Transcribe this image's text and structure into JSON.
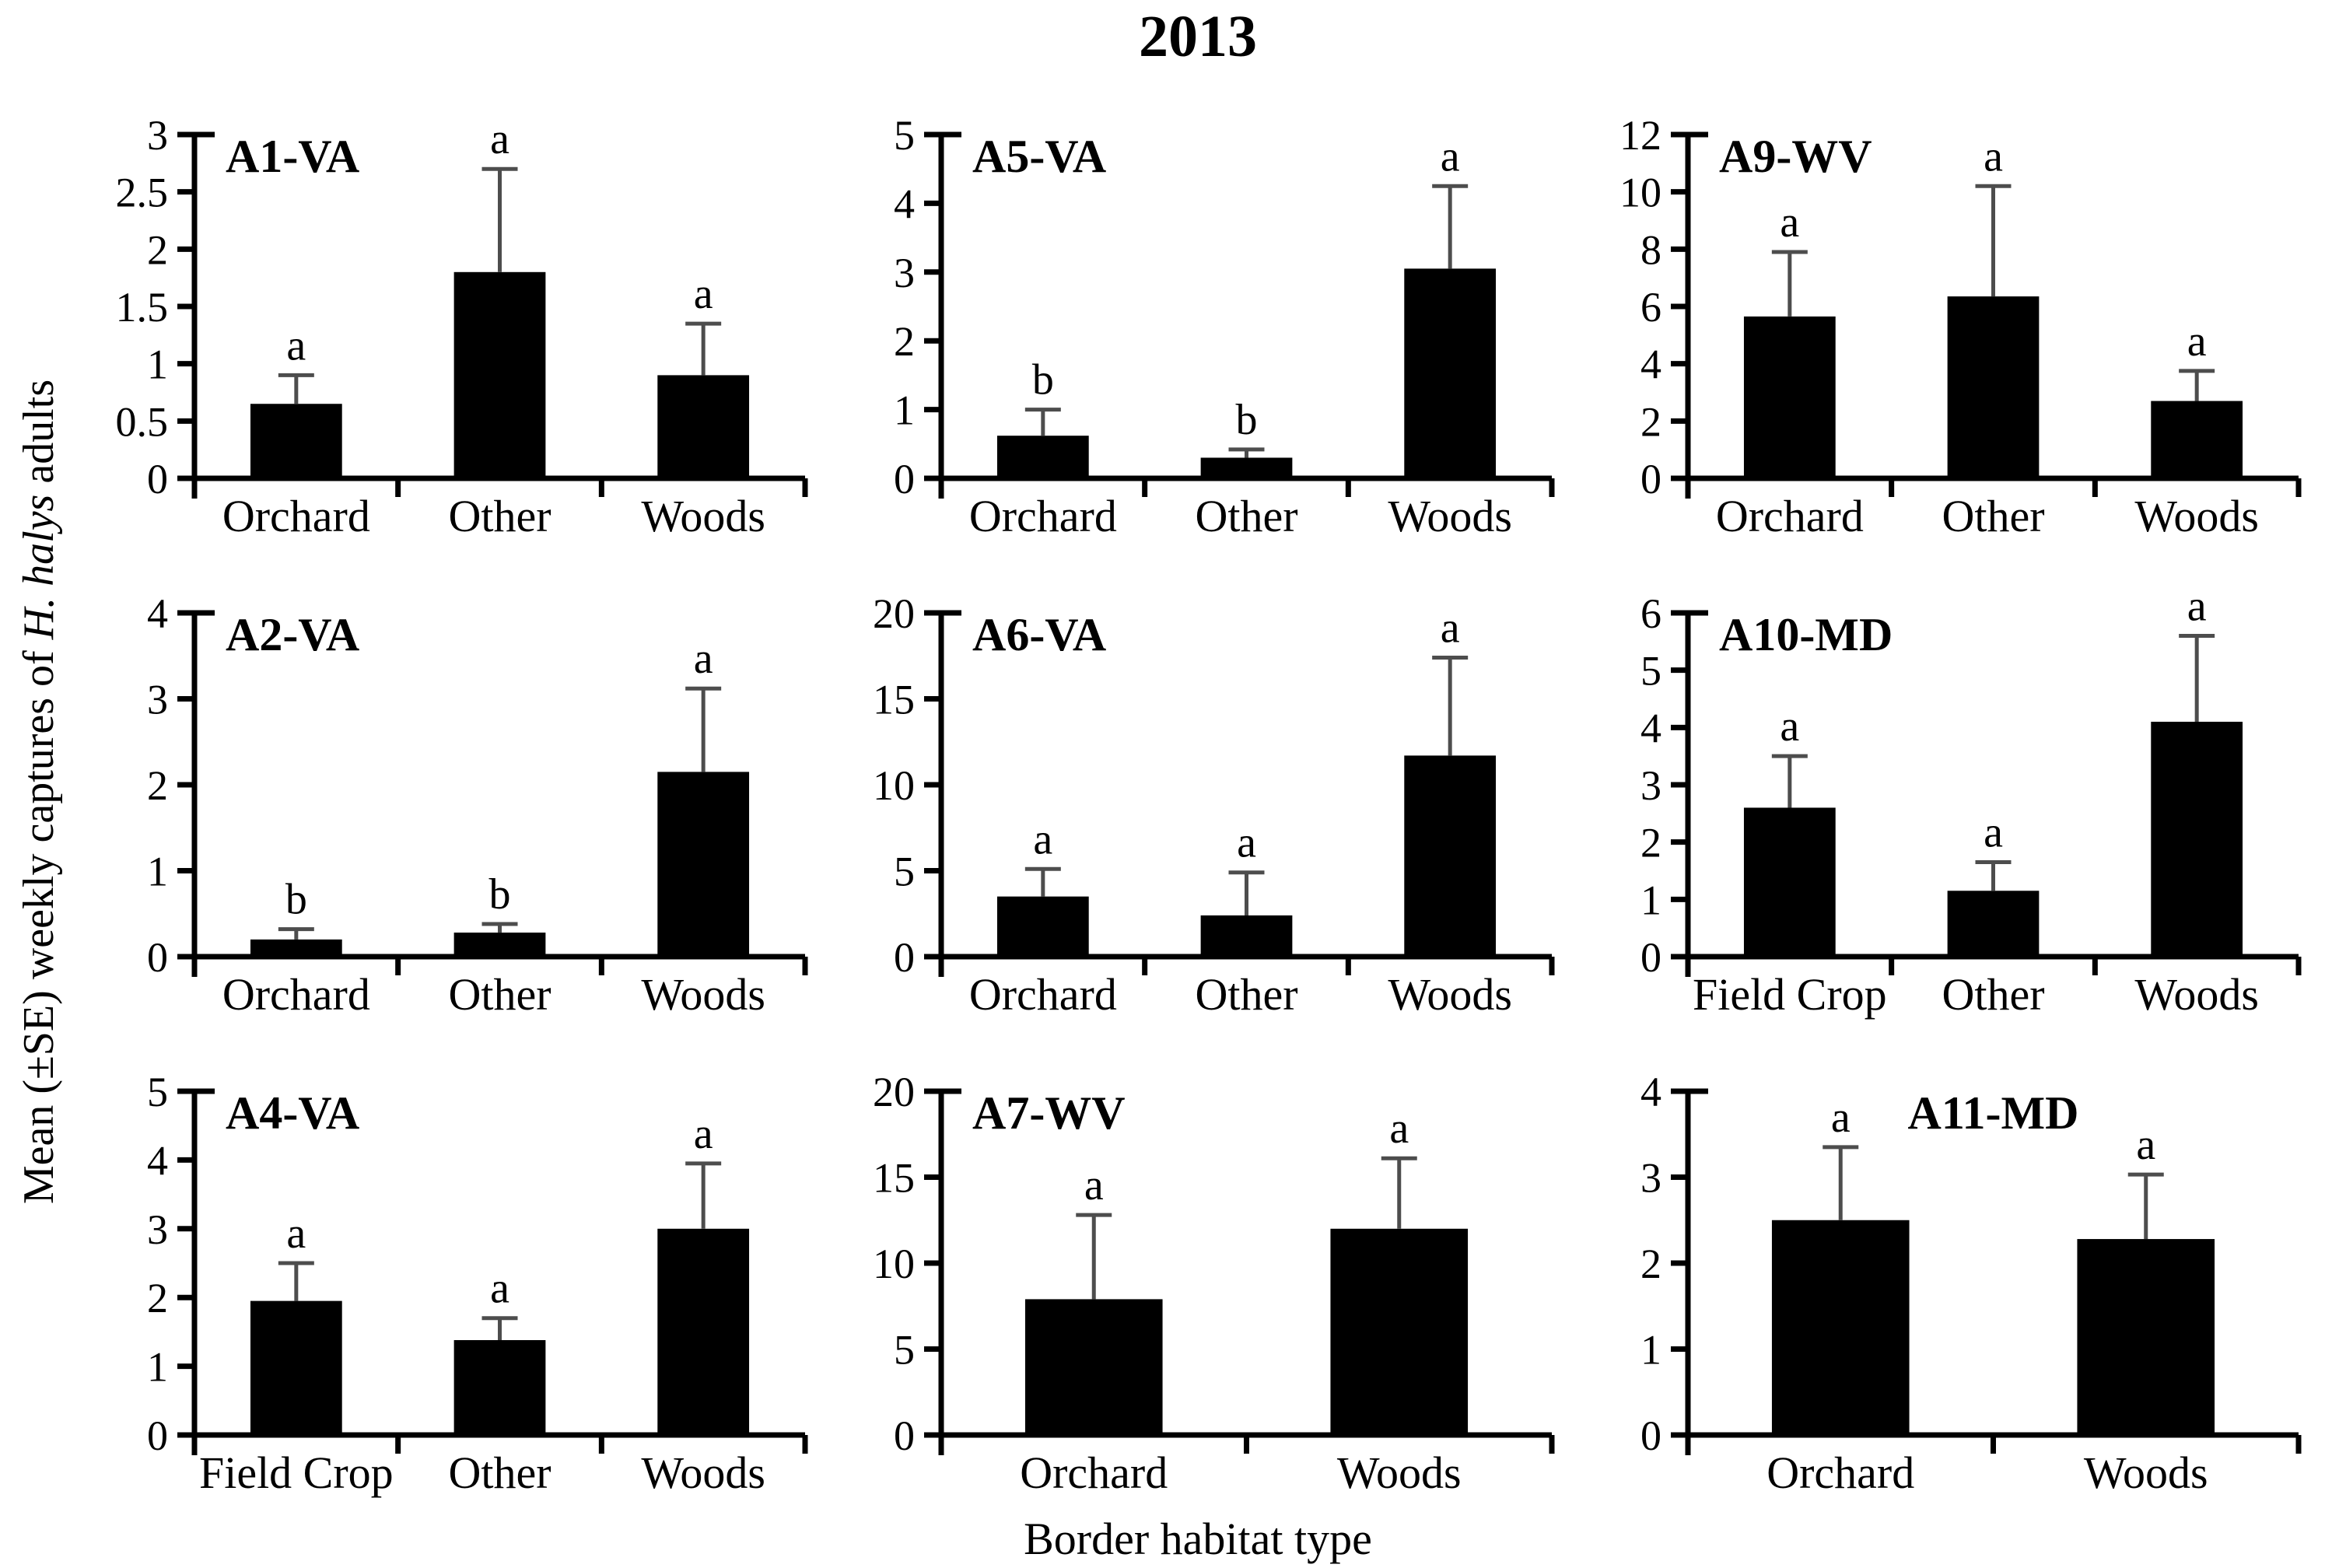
{
  "figure": {
    "title": "2013",
    "xlabel": "Border habitat type",
    "ylabel_prefix": "Mean (±SE) weekly captures of ",
    "ylabel_italic": "H. halys",
    "ylabel_suffix": " adults",
    "colors": {
      "bar": "#000000",
      "error_bar": "#4d4d4d",
      "text": "#000000",
      "background": "#ffffff"
    }
  },
  "chart_data": [
    {
      "type": "bar",
      "panel": "A1-VA",
      "label_align": "left",
      "categories": [
        "Orchard",
        "Other",
        "Woods"
      ],
      "values": [
        0.65,
        1.8,
        0.9
      ],
      "se": [
        0.25,
        0.9,
        0.45
      ],
      "letters": [
        "a",
        "a",
        "a"
      ],
      "ylim": [
        0,
        3
      ],
      "yticks": [
        0,
        0.5,
        1,
        1.5,
        2,
        2.5,
        3
      ]
    },
    {
      "type": "bar",
      "panel": "A5-VA",
      "label_align": "left",
      "categories": [
        "Orchard",
        "Other",
        "Woods"
      ],
      "values": [
        0.62,
        0.3,
        3.05
      ],
      "se": [
        0.38,
        0.12,
        1.2
      ],
      "letters": [
        "b",
        "b",
        "a"
      ],
      "ylim": [
        0,
        5
      ],
      "yticks": [
        0,
        1,
        2,
        3,
        4,
        5
      ]
    },
    {
      "type": "bar",
      "panel": "A9-WV",
      "label_align": "left",
      "categories": [
        "Orchard",
        "Other",
        "Woods"
      ],
      "values": [
        5.65,
        6.35,
        2.7
      ],
      "se": [
        2.25,
        3.85,
        1.05
      ],
      "letters": [
        "a",
        "a",
        "a"
      ],
      "ylim": [
        0,
        12
      ],
      "yticks": [
        0,
        2,
        4,
        6,
        8,
        10,
        12
      ]
    },
    {
      "type": "bar",
      "panel": "A2-VA",
      "label_align": "left",
      "categories": [
        "Orchard",
        "Other",
        "Woods"
      ],
      "values": [
        0.2,
        0.28,
        2.15
      ],
      "se": [
        0.12,
        0.1,
        0.97
      ],
      "letters": [
        "b",
        "b",
        "a"
      ],
      "ylim": [
        0,
        4
      ],
      "yticks": [
        0,
        1,
        2,
        3,
        4
      ]
    },
    {
      "type": "bar",
      "panel": "A6-VA",
      "label_align": "left",
      "categories": [
        "Orchard",
        "Other",
        "Woods"
      ],
      "values": [
        3.5,
        2.4,
        11.7
      ],
      "se": [
        1.6,
        2.5,
        5.7
      ],
      "letters": [
        "a",
        "a",
        "a"
      ],
      "ylim": [
        0,
        20
      ],
      "yticks": [
        0,
        5,
        10,
        15,
        20
      ]
    },
    {
      "type": "bar",
      "panel": "A10-MD",
      "label_align": "left",
      "categories": [
        "Field Crop",
        "Other",
        "Woods"
      ],
      "values": [
        2.6,
        1.15,
        4.1
      ],
      "se": [
        0.9,
        0.5,
        1.5
      ],
      "letters": [
        "a",
        "a",
        "a"
      ],
      "ylim": [
        0,
        6
      ],
      "yticks": [
        0,
        1,
        2,
        3,
        4,
        5,
        6
      ]
    },
    {
      "type": "bar",
      "panel": "A4-VA",
      "label_align": "left",
      "categories": [
        "Field Crop",
        "Other",
        "Woods"
      ],
      "values": [
        1.95,
        1.38,
        3.0
      ],
      "se": [
        0.55,
        0.32,
        0.95
      ],
      "letters": [
        "a",
        "a",
        "a"
      ],
      "ylim": [
        0,
        5
      ],
      "yticks": [
        0,
        1,
        2,
        3,
        4,
        5
      ]
    },
    {
      "type": "bar",
      "panel": "A7-WV",
      "label_align": "left",
      "categories": [
        "Orchard",
        "Woods"
      ],
      "values": [
        7.9,
        12.0
      ],
      "se": [
        4.9,
        4.1
      ],
      "letters": [
        "a",
        "a"
      ],
      "ylim": [
        0,
        20
      ],
      "yticks": [
        0,
        5,
        10,
        15,
        20
      ]
    },
    {
      "type": "bar",
      "panel": "A11-MD",
      "label_align": "center",
      "categories": [
        "Orchard",
        "Woods"
      ],
      "values": [
        2.5,
        2.28
      ],
      "se": [
        0.85,
        0.75
      ],
      "letters": [
        "a",
        "a"
      ],
      "ylim": [
        0,
        4
      ],
      "yticks": [
        0,
        1,
        2,
        3,
        4
      ]
    }
  ]
}
